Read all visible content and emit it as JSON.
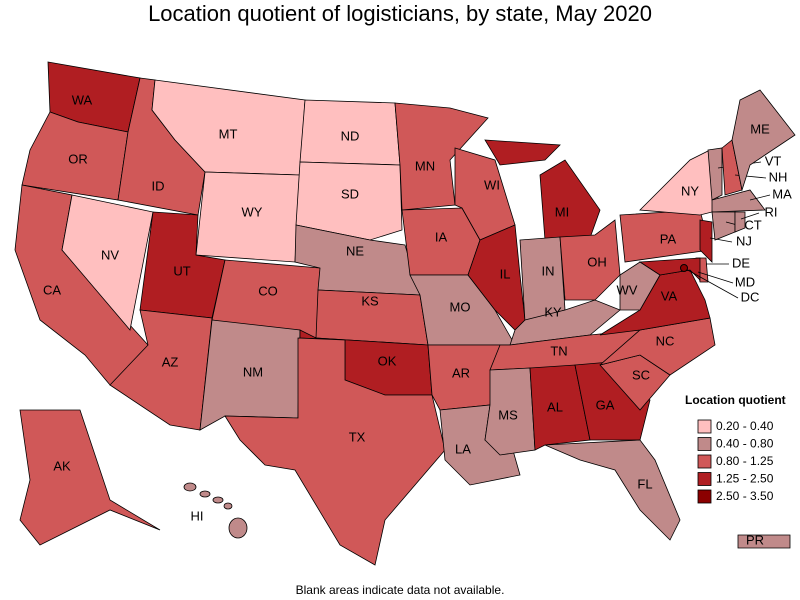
{
  "title": "Location quotient of logisticians, by state, May 2020",
  "footnote": "Blank areas indicate data not available.",
  "legend": {
    "title": "Location quotient",
    "items": [
      {
        "label": "0.20 - 0.40",
        "color": "#ffbfbf"
      },
      {
        "label": "0.40 - 0.80",
        "color": "#c08a8a"
      },
      {
        "label": "0.80 - 1.25",
        "color": "#d05858"
      },
      {
        "label": "1.25 - 2.50",
        "color": "#b01e22"
      },
      {
        "label": "2.50 - 3.50",
        "color": "#8b0000"
      }
    ]
  },
  "states": [
    {
      "abbr": "WA",
      "color": "#b01e22"
    },
    {
      "abbr": "OR",
      "color": "#d05858"
    },
    {
      "abbr": "CA",
      "color": "#d05858"
    },
    {
      "abbr": "NV",
      "color": "#ffbfbf"
    },
    {
      "abbr": "ID",
      "color": "#d05858"
    },
    {
      "abbr": "MT",
      "color": "#ffbfbf"
    },
    {
      "abbr": "WY",
      "color": "#ffbfbf"
    },
    {
      "abbr": "UT",
      "color": "#b01e22"
    },
    {
      "abbr": "AZ",
      "color": "#d05858"
    },
    {
      "abbr": "CO",
      "color": "#d05858"
    },
    {
      "abbr": "NM",
      "color": "#c08a8a"
    },
    {
      "abbr": "ND",
      "color": "#ffbfbf"
    },
    {
      "abbr": "SD",
      "color": "#ffbfbf"
    },
    {
      "abbr": "NE",
      "color": "#c08a8a"
    },
    {
      "abbr": "KS",
      "color": "#d05858"
    },
    {
      "abbr": "OK",
      "color": "#b01e22"
    },
    {
      "abbr": "TX",
      "color": "#d05858"
    },
    {
      "abbr": "MN",
      "color": "#d05858"
    },
    {
      "abbr": "IA",
      "color": "#d05858"
    },
    {
      "abbr": "MO",
      "color": "#c08a8a"
    },
    {
      "abbr": "AR",
      "color": "#d05858"
    },
    {
      "abbr": "LA",
      "color": "#c08a8a"
    },
    {
      "abbr": "WI",
      "color": "#d05858"
    },
    {
      "abbr": "IL",
      "color": "#b01e22"
    },
    {
      "abbr": "MI",
      "color": "#b01e22"
    },
    {
      "abbr": "IN",
      "color": "#c08a8a"
    },
    {
      "abbr": "OH",
      "color": "#d05858"
    },
    {
      "abbr": "KY",
      "color": "#c08a8a"
    },
    {
      "abbr": "TN",
      "color": "#d05858"
    },
    {
      "abbr": "MS",
      "color": "#c08a8a"
    },
    {
      "abbr": "AL",
      "color": "#b01e22"
    },
    {
      "abbr": "GA",
      "color": "#b01e22"
    },
    {
      "abbr": "FL",
      "color": "#c08a8a"
    },
    {
      "abbr": "SC",
      "color": "#d05858"
    },
    {
      "abbr": "NC",
      "color": "#d05858"
    },
    {
      "abbr": "VA",
      "color": "#b01e22"
    },
    {
      "abbr": "WV",
      "color": "#c08a8a"
    },
    {
      "abbr": "PA",
      "color": "#d05858"
    },
    {
      "abbr": "NY",
      "color": "#ffbfbf"
    },
    {
      "abbr": "NJ",
      "color": "#b01e22"
    },
    {
      "abbr": "DE",
      "color": "#d05858"
    },
    {
      "abbr": "MD",
      "color": "#b01e22"
    },
    {
      "abbr": "DC",
      "color": "#8b0000"
    },
    {
      "abbr": "VT",
      "color": "#c08a8a"
    },
    {
      "abbr": "NH",
      "color": "#d05858"
    },
    {
      "abbr": "ME",
      "color": "#c08a8a"
    },
    {
      "abbr": "MA",
      "color": "#c08a8a"
    },
    {
      "abbr": "CT",
      "color": "#c08a8a"
    },
    {
      "abbr": "RI",
      "color": "#c08a8a"
    },
    {
      "abbr": "AK",
      "color": "#d05858"
    },
    {
      "abbr": "HI",
      "color": "#c08a8a"
    },
    {
      "abbr": "PR",
      "color": "#c08a8a"
    }
  ]
}
